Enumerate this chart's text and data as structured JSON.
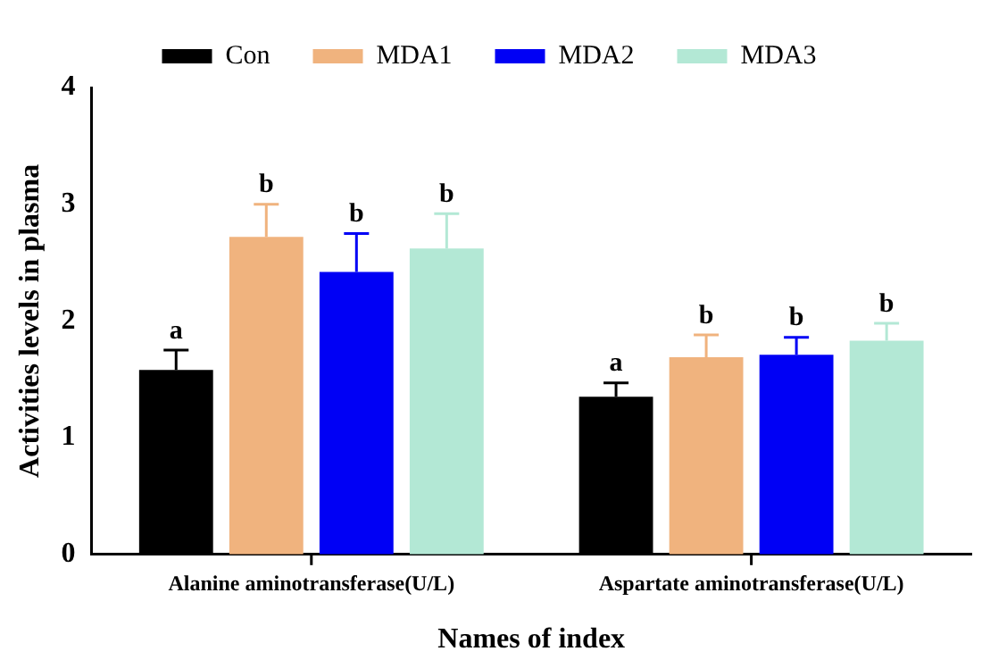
{
  "chart_data": {
    "type": "bar",
    "xlabel": "Names of index",
    "ylabel": "Activities levels in plasma",
    "categories": [
      "Alanine aminotransferase(U/L)",
      "Aspartate aminotransferase(U/L)"
    ],
    "series": [
      {
        "name": "Con",
        "color": "#000000",
        "values": [
          1.58,
          1.35
        ],
        "errors": [
          [
            1.58,
            1.75
          ],
          [
            1.35,
            1.47
          ]
        ],
        "value_labels": [
          "a",
          "a"
        ]
      },
      {
        "name": "MDA1",
        "color": "#f0b37e",
        "values": [
          2.72,
          1.69
        ],
        "errors": [
          [
            2.72,
            3.0
          ],
          [
            1.69,
            1.88
          ]
        ],
        "value_labels": [
          "b",
          "b"
        ]
      },
      {
        "name": "MDA2",
        "color": "#0000f5",
        "values": [
          2.42,
          1.71
        ],
        "errors": [
          [
            2.42,
            2.75
          ],
          [
            1.71,
            1.86
          ]
        ],
        "value_labels": [
          "b",
          "b"
        ]
      },
      {
        "name": "MDA3",
        "color": "#b3e8d5",
        "values": [
          2.62,
          1.83
        ],
        "errors": [
          [
            2.62,
            2.92
          ],
          [
            1.83,
            1.98
          ]
        ],
        "value_labels": [
          "b",
          "b"
        ]
      }
    ],
    "ylim": [
      0,
      4
    ],
    "yticks": [
      0,
      1,
      2,
      3,
      4
    ],
    "grid": false,
    "legend": "top"
  }
}
